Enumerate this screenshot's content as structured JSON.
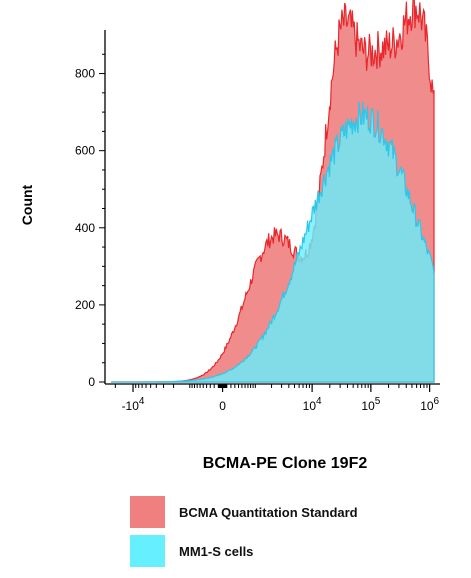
{
  "chart_data": {
    "type": "area",
    "xlabel": "BCMA-PE Clone 19F2",
    "ylabel": "Count",
    "x_scale": "biexponential",
    "ylim": [
      0,
      900
    ],
    "y_ticks": [
      0,
      200,
      400,
      600,
      800
    ],
    "x_ticks": [
      {
        "value": -10000,
        "label_base": "-10",
        "label_exp": "4"
      },
      {
        "value": 0,
        "label_base": "0",
        "label_exp": ""
      },
      {
        "value": 10000,
        "label_base": "10",
        "label_exp": "4"
      },
      {
        "value": 100000,
        "label_base": "10",
        "label_exp": "5"
      },
      {
        "value": 1000000,
        "label_base": "10",
        "label_exp": "6"
      }
    ],
    "series": [
      {
        "name": "BCMA Quantitation Standard",
        "fill": "#f08080",
        "stroke": "#e8282d",
        "peaks": [
          {
            "x": 2500,
            "height": 380,
            "width": 0.09
          },
          {
            "x": 30000,
            "height": 740,
            "width": 0.05
          },
          {
            "x": 130000,
            "height": 710,
            "width": 0.06
          },
          {
            "x": 700000,
            "height": 880,
            "width": 0.06
          }
        ]
      },
      {
        "name": "MM1-S cells",
        "fill": "#66f0ff",
        "stroke": "#2fc6e8",
        "peaks": [
          {
            "x": 75000,
            "height": 690,
            "width": 0.16
          }
        ]
      }
    ]
  }
}
